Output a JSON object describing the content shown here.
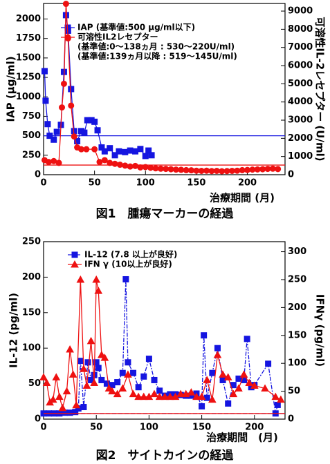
{
  "chart_data": [
    {
      "type": "line",
      "title": "図1　腫瘍マーカーの経過",
      "xlabel": "治療期間 (月)",
      "ylabel": "IAP (μg/ml)",
      "y2label": "可溶性IL-2レセプター (U/ml)",
      "xlim": [
        0,
        237
      ],
      "xticks": [
        0,
        50,
        100,
        150,
        200
      ],
      "ylim": [
        0,
        2200
      ],
      "yticks": [
        0,
        250,
        500,
        750,
        1000,
        1250,
        1500,
        1750,
        2000
      ],
      "y2lim": [
        0,
        9420
      ],
      "y2ticks": [
        0,
        1000,
        2000,
        3000,
        4000,
        5000,
        6000,
        7000,
        8000,
        9000
      ],
      "legend_notes": [
        "(基準値:0～138ヵ月 : 530～220U/ml)",
        "(基準値:139ヵ月以降 : 519～145U/ml)"
      ],
      "series": [
        {
          "name": "IAP (基準値:500 μg/ml以下)",
          "color": "#1515e0",
          "marker": "square",
          "linestyle": "solid",
          "reference": 500,
          "x": [
            1,
            2,
            4,
            6,
            10,
            13,
            17,
            20,
            22,
            24,
            27,
            30,
            33,
            37,
            40,
            43,
            47,
            50,
            53,
            57,
            60,
            65,
            70,
            74,
            80,
            85,
            90,
            95,
            100,
            103,
            106
          ],
          "values": [
            1330,
            950,
            650,
            500,
            450,
            550,
            640,
            1320,
            2050,
            1850,
            1100,
            560,
            430,
            560,
            540,
            700,
            700,
            680,
            570,
            350,
            300,
            340,
            250,
            300,
            290,
            310,
            300,
            330,
            240,
            310,
            250
          ]
        },
        {
          "name": "可溶性IL2レセプター",
          "color": "#ee1111",
          "marker": "circle",
          "linestyle": "solid",
          "axis": "y2",
          "reference": 530,
          "x": [
            1,
            5,
            10,
            15,
            18,
            20,
            22,
            24,
            27,
            30,
            33,
            37,
            42,
            50,
            55,
            60,
            65,
            70,
            75,
            80,
            85,
            90,
            95,
            100,
            105,
            110,
            115,
            120,
            125,
            130,
            135,
            140,
            145,
            150,
            155,
            160,
            165,
            170,
            175,
            180,
            185,
            190,
            195,
            200,
            205,
            210,
            215,
            220,
            225,
            230
          ],
          "values": [
            800,
            700,
            750,
            650,
            3700,
            5000,
            9400,
            7500,
            3800,
            2100,
            1500,
            1400,
            1400,
            1400,
            700,
            800,
            650,
            600,
            550,
            500,
            450,
            480,
            400,
            420,
            380,
            350,
            330,
            320,
            300,
            280,
            270,
            250,
            240,
            220,
            210,
            220,
            200,
            210,
            190,
            200,
            210,
            220,
            250,
            260,
            280,
            290,
            300,
            320,
            330,
            310
          ]
        }
      ]
    },
    {
      "type": "line",
      "title": "図2　サイトカインの経過",
      "xlabel": "治療期間　(月)",
      "ylabel": "IL-12 (pg/ml)",
      "y2label": "IFNγ (pg/ml)",
      "xlim": [
        0,
        229
      ],
      "xticks": [
        0,
        50,
        100,
        150,
        200
      ],
      "ylim": [
        0,
        250
      ],
      "yticks": [
        0,
        50,
        100,
        150,
        200,
        250
      ],
      "y2lim": [
        0,
        318
      ],
      "y2ticks": [
        0,
        50,
        100,
        150,
        200,
        250,
        300
      ],
      "series": [
        {
          "name": "IL-12 (7.8 以上が良好)",
          "color": "#1515e0",
          "marker": "square",
          "linestyle": "dashdot",
          "reference": 7.8,
          "x": [
            0,
            5,
            10,
            15,
            20,
            25,
            30,
            33,
            35,
            38,
            42,
            45,
            48,
            50,
            52,
            55,
            60,
            65,
            70,
            75,
            78,
            80,
            85,
            90,
            95,
            100,
            105,
            110,
            115,
            120,
            125,
            130,
            135,
            140,
            145,
            150,
            152,
            155,
            160,
            165,
            170,
            175,
            180,
            185,
            190,
            193,
            197,
            200,
            213,
            220,
            222
          ],
          "values": [
            8,
            8,
            8,
            8,
            9,
            9,
            10,
            15,
            82,
            17,
            80,
            55,
            62,
            80,
            72,
            55,
            50,
            48,
            52,
            65,
            197,
            80,
            65,
            45,
            60,
            85,
            55,
            40,
            33,
            35,
            35,
            34,
            33,
            33,
            36,
            18,
            118,
            30,
            65,
            100,
            55,
            22,
            48,
            57,
            55,
            113,
            45,
            48,
            78,
            8,
            20
          ]
        },
        {
          "name": "IFN γ (10以上が良好)",
          "color": "#ee1111",
          "marker": "triangle",
          "linestyle": "solid",
          "axis": "y2",
          "reference": 10,
          "x": [
            0,
            3,
            6,
            9,
            12,
            15,
            18,
            22,
            25,
            28,
            31,
            35,
            38,
            41,
            45,
            48,
            50,
            52,
            55,
            58,
            62,
            65,
            70,
            75,
            80,
            85,
            90,
            95,
            100,
            105,
            110,
            115,
            120,
            125,
            130,
            135,
            140,
            145,
            150,
            155,
            160,
            165,
            170,
            175,
            180,
            185,
            190,
            195,
            200,
            210,
            220,
            225
          ],
          "values": [
            75,
            65,
            30,
            35,
            75,
            40,
            20,
            50,
            125,
            80,
            25,
            250,
            90,
            60,
            140,
            65,
            250,
            230,
            115,
            110,
            55,
            50,
            45,
            55,
            80,
            45,
            40,
            40,
            40,
            45,
            40,
            40,
            40,
            40,
            45,
            45,
            48,
            40,
            40,
            70,
            35,
            115,
            80,
            75,
            45,
            55,
            80,
            65,
            60,
            55,
            40,
            35
          ]
        }
      ]
    }
  ]
}
